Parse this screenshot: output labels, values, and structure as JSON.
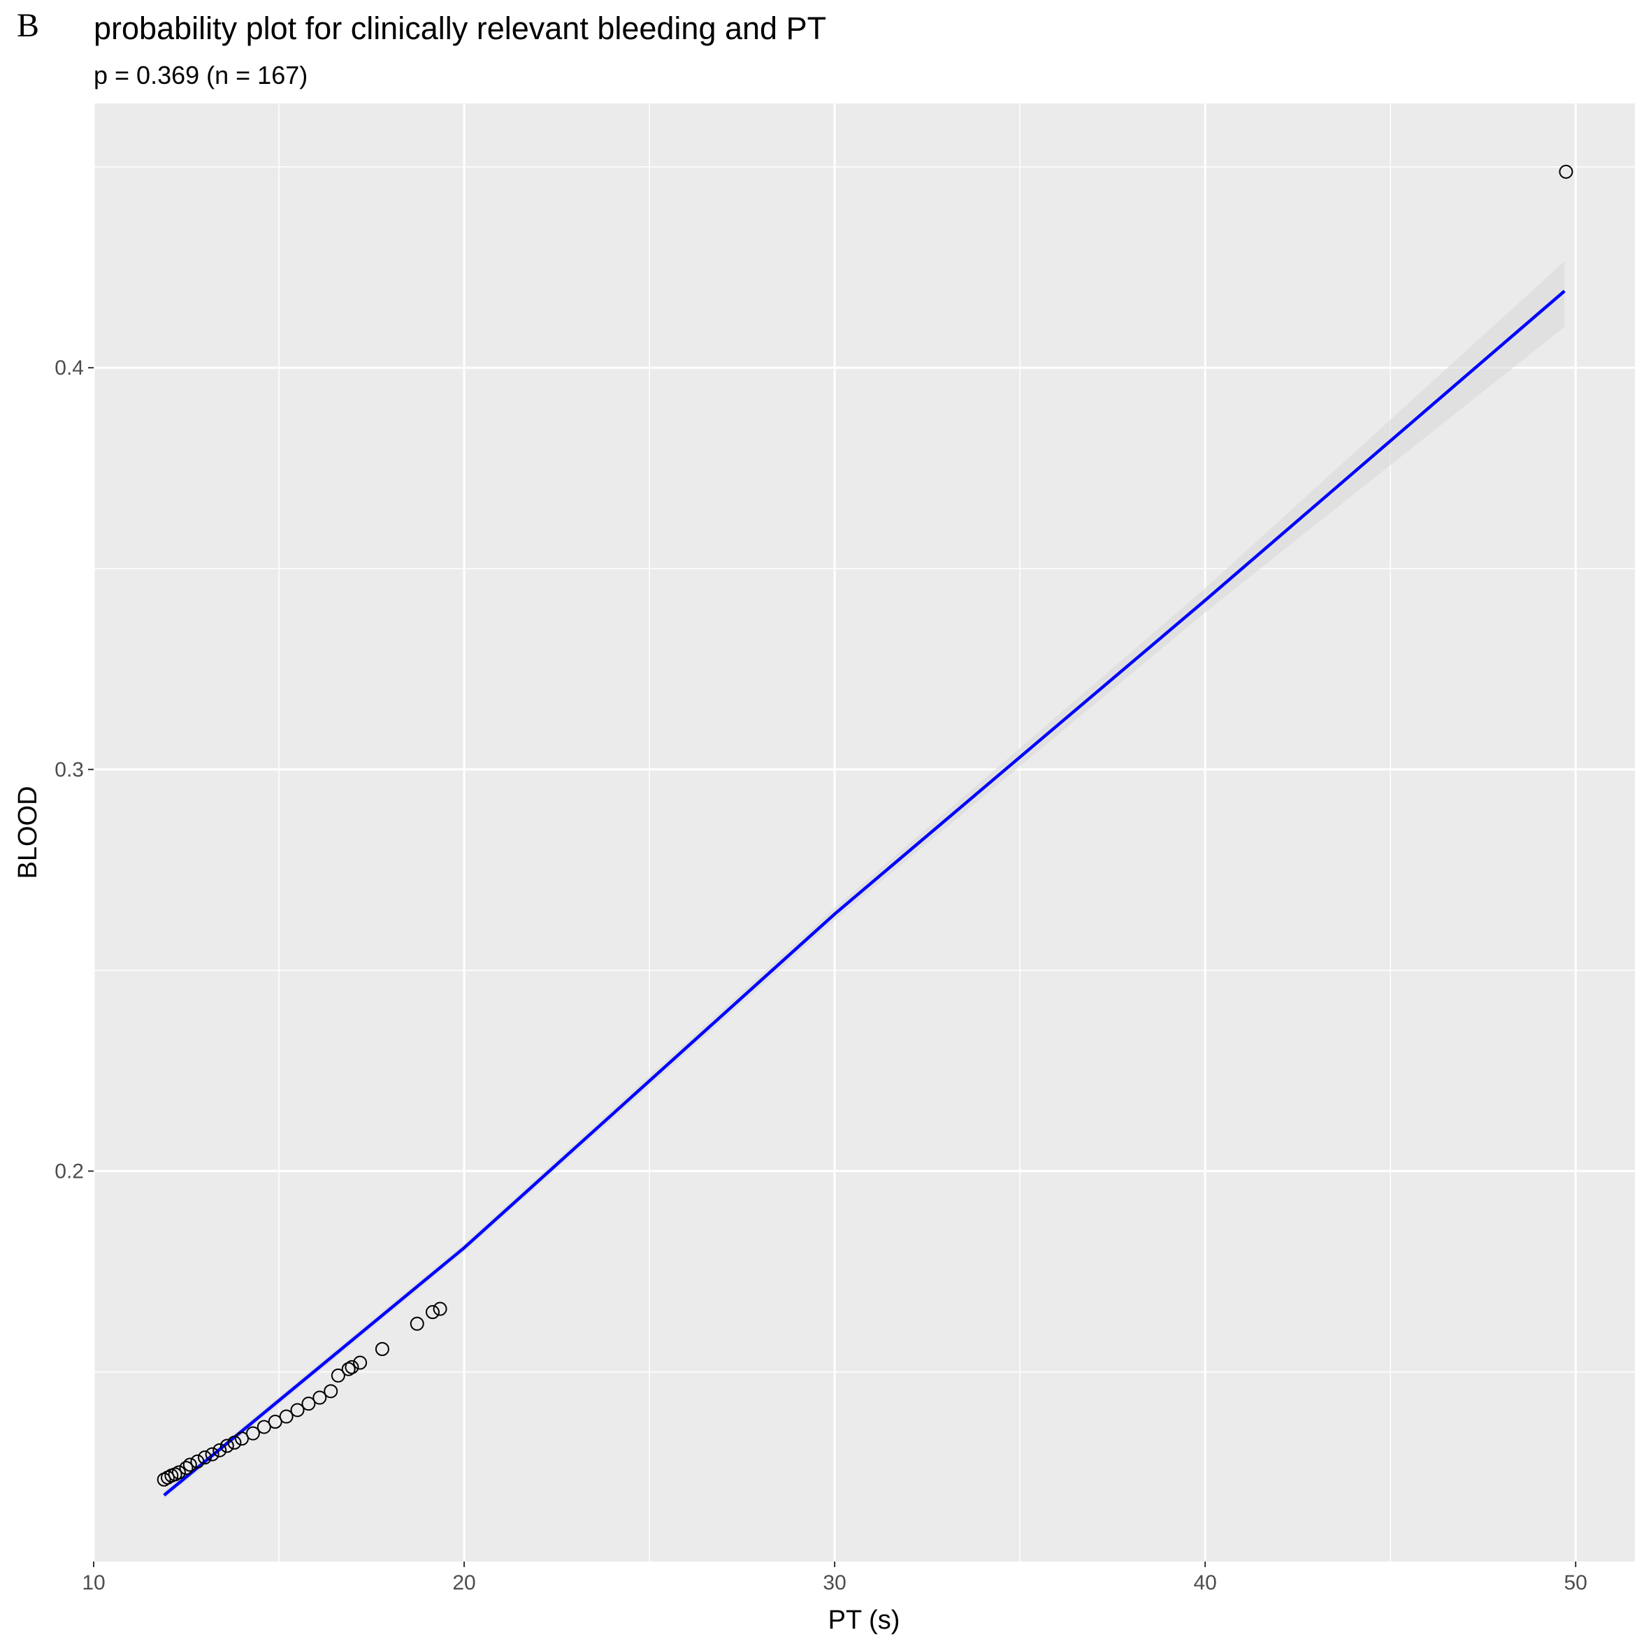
{
  "chart_data": {
    "type": "scatter",
    "panel_label": "B",
    "title": "probability plot for clinically relevant bleeding and PT",
    "subtitle": "p = 0.369 (n = 167)",
    "x_label": "PT (s)",
    "y_label": "BLOOD",
    "xlim": [
      10.0,
      51.6
    ],
    "ylim": [
      0.1028,
      0.4658
    ],
    "xticks": [
      10,
      20,
      30,
      40,
      50
    ],
    "yticks": [
      0.2,
      0.3,
      0.4
    ],
    "xminor": [
      15,
      25,
      35,
      45
    ],
    "yminor": [
      0.15,
      0.25,
      0.35,
      0.45
    ],
    "grid": true,
    "point_color": "#000000",
    "x": [
      11.9,
      12.0,
      12.1,
      12.2,
      12.3,
      12.5,
      12.6,
      12.8,
      13.0,
      13.2,
      13.4,
      13.6,
      13.8,
      14.0,
      14.3,
      14.6,
      14.9,
      15.2,
      15.5,
      15.8,
      16.1,
      16.4,
      16.6,
      16.88,
      16.97,
      17.19,
      17.79,
      18.73,
      19.15,
      19.35,
      49.74
    ],
    "values": [
      0.1232,
      0.1237,
      0.1242,
      0.1245,
      0.125,
      0.1261,
      0.1269,
      0.1277,
      0.1287,
      0.1295,
      0.1305,
      0.1316,
      0.1324,
      0.1334,
      0.1347,
      0.1363,
      0.1376,
      0.1389,
      0.1405,
      0.1421,
      0.1436,
      0.1452,
      0.1491,
      0.1507,
      0.1512,
      0.1523,
      0.1557,
      0.162,
      0.1649,
      0.1657,
      0.4488
    ],
    "fit": {
      "color": "#0000ff",
      "x": [
        11.9,
        20,
        30,
        40,
        49.7
      ],
      "values": [
        0.1193,
        0.1809,
        0.264,
        0.3421,
        0.4191
      ]
    },
    "band": {
      "color": "#d9d9d9",
      "x": [
        11.9,
        20,
        30,
        40,
        49.7
      ],
      "lower": [
        0.1183,
        0.1799,
        0.2625,
        0.3391,
        0.4102
      ],
      "upper": [
        0.1203,
        0.1819,
        0.2655,
        0.3451,
        0.4265
      ]
    }
  }
}
